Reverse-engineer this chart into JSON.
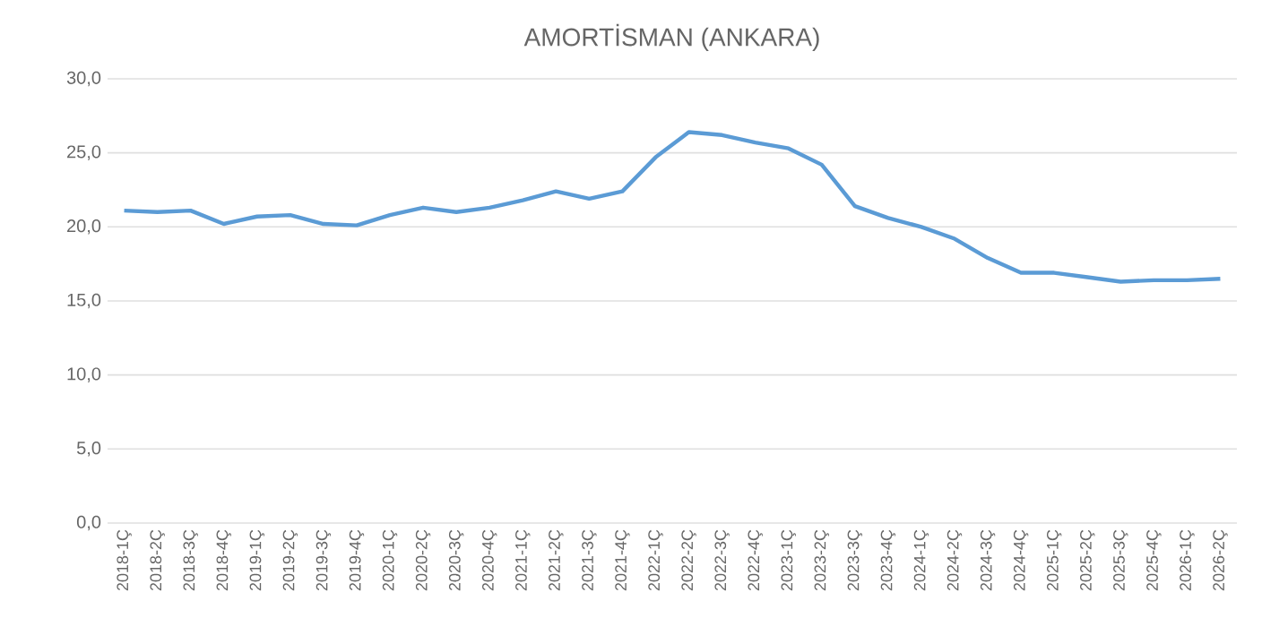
{
  "chart_data": {
    "type": "line",
    "title": "AMORTİSMAN (ANKARA)",
    "categories": [
      "2018-1Ç",
      "2018-2Ç",
      "2018-3Ç",
      "2018-4Ç",
      "2019-1Ç",
      "2019-2Ç",
      "2019-3Ç",
      "2019-4Ç",
      "2020-1Ç",
      "2020-2Ç",
      "2020-3Ç",
      "2020-4Ç",
      "2021-1Ç",
      "2021-2Ç",
      "2021-3Ç",
      "2021-4Ç",
      "2022-1Ç",
      "2022-2Ç",
      "2022-3Ç",
      "2022-4Ç",
      "2023-1Ç",
      "2023-2Ç",
      "2023-3Ç",
      "2023-4Ç",
      "2024-1Ç",
      "2024-2Ç",
      "2024-3Ç",
      "2024-4Ç",
      "2025-1Ç",
      "2025-2Ç",
      "2025-3Ç",
      "2025-4Ç",
      "2026-1Ç",
      "2026-2Ç"
    ],
    "values": [
      21.1,
      21.0,
      21.1,
      20.2,
      20.7,
      20.8,
      20.2,
      20.1,
      20.8,
      21.3,
      21.0,
      21.3,
      21.8,
      22.4,
      21.9,
      22.4,
      24.7,
      26.4,
      26.2,
      25.7,
      25.3,
      24.2,
      21.4,
      20.6,
      20.0,
      19.2,
      17.9,
      16.9,
      16.9,
      16.6,
      16.3,
      16.4,
      16.4,
      16.5
    ],
    "color": "#5b9bd5",
    "ylim": [
      0,
      30
    ],
    "yticks": [
      {
        "value": 0,
        "label": "0,0"
      },
      {
        "value": 5,
        "label": "5,0"
      },
      {
        "value": 10,
        "label": "10,0"
      },
      {
        "value": 15,
        "label": "15,0"
      },
      {
        "value": 20,
        "label": "20,0"
      },
      {
        "value": 25,
        "label": "25,0"
      },
      {
        "value": 30,
        "label": "30,0"
      }
    ],
    "grid": "y",
    "marker": "none",
    "line_style": "solid"
  }
}
